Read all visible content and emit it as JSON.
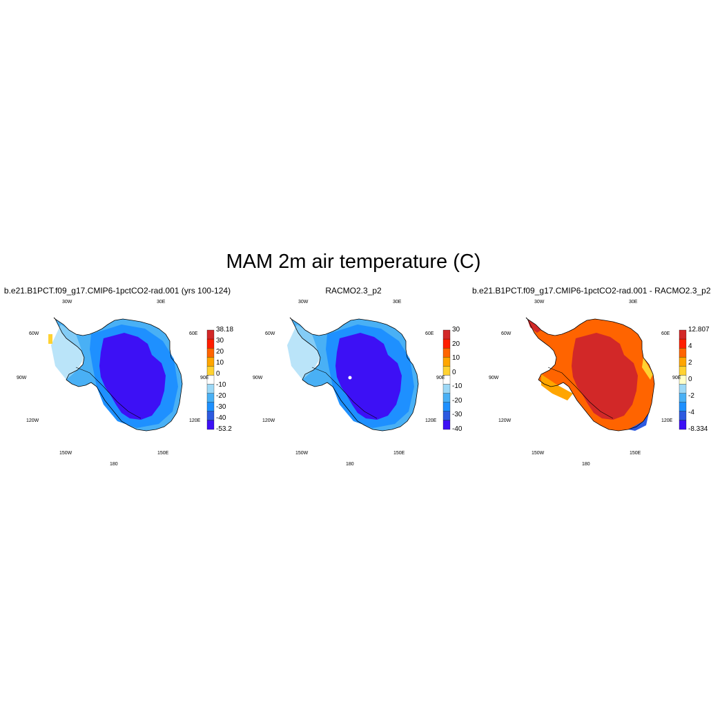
{
  "figure": {
    "title": "MAM 2m air temperature (C)"
  },
  "colors": {
    "absolute_scale": [
      "#3d10f5",
      "#2d5ae0",
      "#1e90ff",
      "#49b0f5",
      "#9dd8f6",
      "#ffffff",
      "#ffd232",
      "#ffa500",
      "#ff6400",
      "#ff1e00",
      "#d22828"
    ],
    "difference_scale": [
      "#3d10f5",
      "#2d5ae0",
      "#1e90ff",
      "#49b0f5",
      "#9dd8f6",
      "#ffffc8",
      "#ffd232",
      "#ffa500",
      "#ff6400",
      "#ff1e00",
      "#d22828"
    ],
    "coastline": "#000000"
  },
  "panels": [
    {
      "id": "p1",
      "title": "b.e21.B1PCT.f09_g17.CMIP6-1pctCO2-rad.001 (yrs 100-124)",
      "lon_labels": [
        "30W",
        "30E",
        "60W",
        "60E",
        "90W",
        "90E",
        "120W",
        "120E",
        "150W",
        "150E",
        "180"
      ],
      "colorbar_labels": [
        "38.18",
        "30",
        "20",
        "10",
        "0",
        "-10",
        "-20",
        "-30",
        "-40",
        "-53.2"
      ],
      "field": "model"
    },
    {
      "id": "p2",
      "title": "RACMO2.3_p2",
      "lon_labels": [
        "30W",
        "30E",
        "60W",
        "60E",
        "90W",
        "90E",
        "120W",
        "120E",
        "150W",
        "150E",
        "180"
      ],
      "colorbar_labels": [
        "30",
        "20",
        "10",
        "0",
        "-10",
        "-20",
        "-30",
        "-40"
      ],
      "field": "racmo"
    },
    {
      "id": "p3",
      "title": "b.e21.B1PCT.f09_g17.CMIP6-1pctCO2-rad.001 - RACMO2.3_p2",
      "lon_labels": [
        "30W",
        "30E",
        "60W",
        "60E",
        "90W",
        "90E",
        "120W",
        "120E",
        "150W",
        "150E",
        "180"
      ],
      "colorbar_labels": [
        "12.807",
        "4",
        "2",
        "0",
        "-2",
        "-4",
        "-8.334"
      ],
      "field": "difference"
    }
  ]
}
